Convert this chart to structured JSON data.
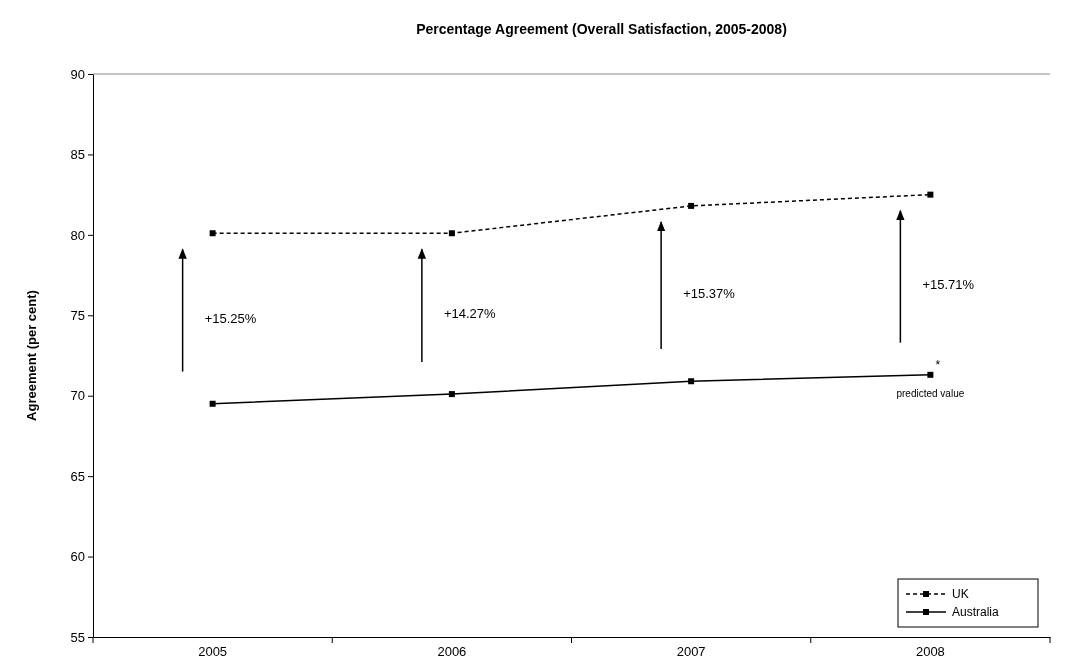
{
  "chart_data": {
    "type": "line",
    "title": "Percentage Agreement (Overall Satisfaction, 2005-2008)",
    "ylabel": "Agreement (per cent)",
    "categories": [
      "2005",
      "2006",
      "2007",
      "2008"
    ],
    "series": [
      {
        "name": "UK",
        "color": "#000000",
        "line_style": "dashed",
        "values": [
          80.1,
          80.1,
          81.8,
          82.5
        ]
      },
      {
        "name": "Australia",
        "color": "#000000",
        "line_style": "solid",
        "values": [
          69.5,
          70.1,
          70.9,
          71.3
        ]
      }
    ],
    "ylim": [
      55,
      90
    ],
    "yticks": [
      55,
      60,
      65,
      70,
      75,
      80,
      85,
      90
    ],
    "grid": false,
    "legend": "bottom right",
    "marker": "square",
    "annotations": [
      "+15.25%",
      "+14.27%",
      "+15.37%",
      "+15.71%",
      {
        "text": "*",
        "x": "2008",
        "y": 71.3
      },
      {
        "text": "predicted value",
        "x": "2008",
        "y": 71.3
      }
    ]
  }
}
